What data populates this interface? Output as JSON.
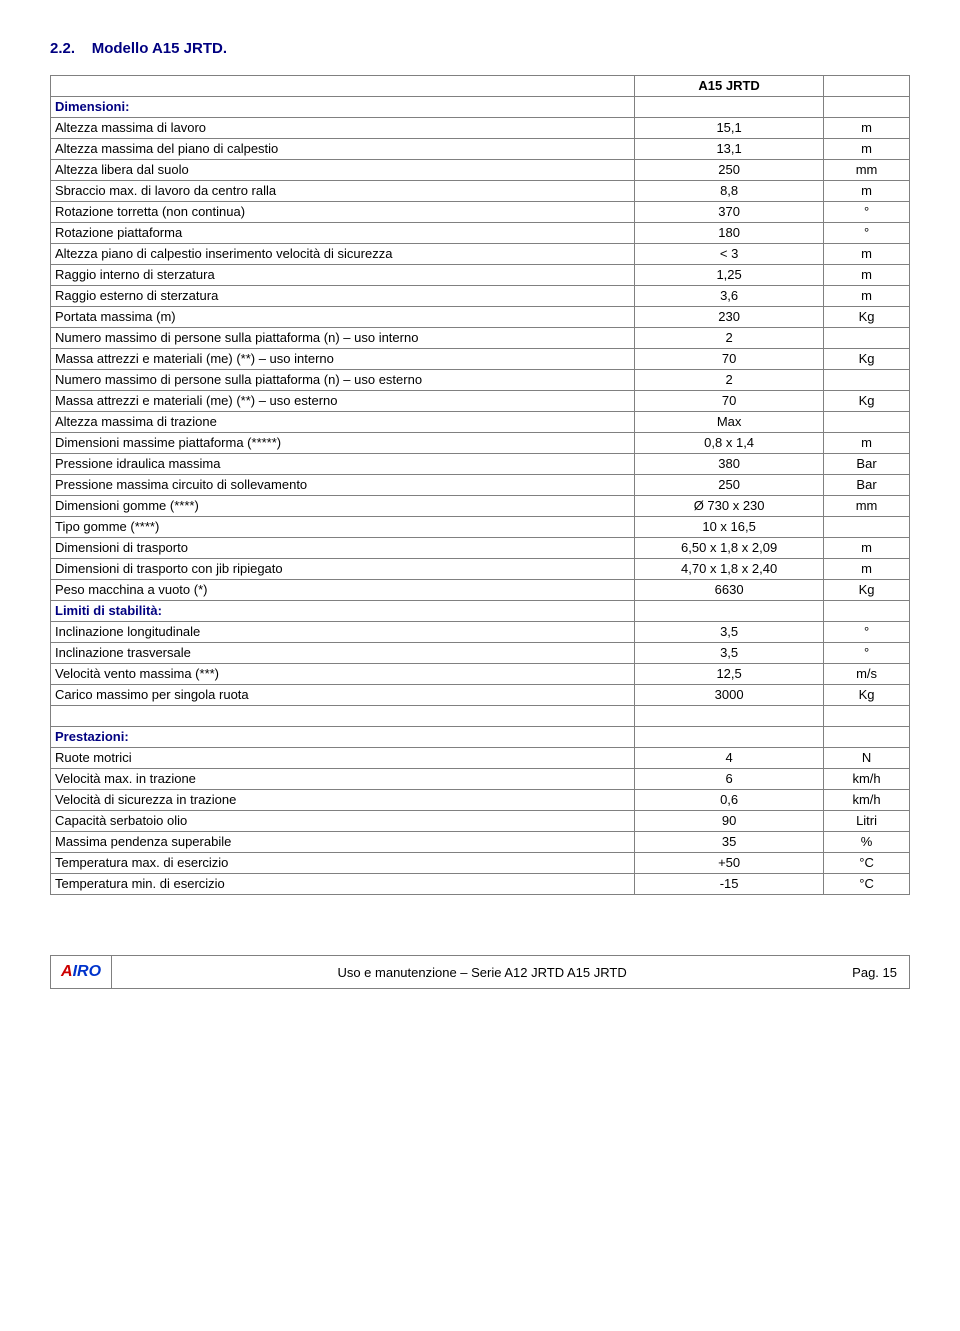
{
  "section": {
    "number": "2.2.",
    "title": "Modello A15 JRTD."
  },
  "model_header": "A15 JRTD",
  "groups": [
    {
      "label": "Dimensioni:",
      "rows": [
        {
          "l": "Altezza massima di lavoro",
          "v": "15,1",
          "u": "m"
        },
        {
          "l": "Altezza massima del piano di calpestio",
          "v": "13,1",
          "u": "m"
        },
        {
          "l": "Altezza libera dal suolo",
          "v": "250",
          "u": "mm"
        },
        {
          "l": "Sbraccio max. di lavoro da centro ralla",
          "v": "8,8",
          "u": "m"
        },
        {
          "l": "Rotazione torretta (non continua)",
          "v": "370",
          "u": "°"
        },
        {
          "l": "Rotazione piattaforma",
          "v": "180",
          "u": "°"
        },
        {
          "l": "Altezza piano di calpestio inserimento velocità di sicurezza",
          "v": "< 3",
          "u": "m"
        },
        {
          "l": "Raggio interno di sterzatura",
          "v": "1,25",
          "u": "m"
        },
        {
          "l": "Raggio esterno di sterzatura",
          "v": "3,6",
          "u": "m"
        },
        {
          "l": "Portata massima (m)",
          "v": "230",
          "u": "Kg"
        },
        {
          "l": "Numero massimo di persone sulla piattaforma (n) – uso interno",
          "v": "2",
          "u": "",
          "indent": 2
        },
        {
          "l": "Massa attrezzi e materiali (me) (**) – uso interno",
          "v": "70",
          "u": "Kg",
          "indent": 2
        },
        {
          "l": "Numero massimo di persone sulla piattaforma (n) – uso esterno",
          "v": "2",
          "u": "",
          "indent": 2
        },
        {
          "l": "Massa attrezzi e materiali (me) (**) – uso esterno",
          "v": "70",
          "u": "Kg",
          "indent": 2
        },
        {
          "l": "Altezza massima di trazione",
          "v": "Max",
          "u": ""
        },
        {
          "l": "Dimensioni massime piattaforma (*****)",
          "v": "0,8 x 1,4",
          "u": "m"
        },
        {
          "l": "Pressione idraulica massima",
          "v": "380",
          "u": "Bar"
        },
        {
          "l": "Pressione massima circuito di sollevamento",
          "v": "250",
          "u": "Bar"
        },
        {
          "l": "Dimensioni gomme (****)",
          "v": "Ø 730 x 230",
          "u": "mm"
        },
        {
          "l": "Tipo gomme (****)",
          "v": "10 x 16,5",
          "u": ""
        },
        {
          "l": "Dimensioni di trasporto",
          "v": "6,50 x 1,8 x 2,09",
          "u": "m"
        },
        {
          "l": "Dimensioni di trasporto con jib ripiegato",
          "v": "4,70 x 1,8 x 2,40",
          "u": "m"
        },
        {
          "l": "Peso macchina a vuoto (*)",
          "v": "6630",
          "u": "Kg"
        }
      ]
    },
    {
      "label": "Limiti di stabilità:",
      "rows": [
        {
          "l": "Inclinazione longitudinale",
          "v": "3,5",
          "u": "°"
        },
        {
          "l": "Inclinazione trasversale",
          "v": "3,5",
          "u": "°"
        },
        {
          "l": "Velocità vento massima (***)",
          "v": "12,5",
          "u": "m/s"
        },
        {
          "l": "Carico massimo per singola ruota",
          "v": "3000",
          "u": "Kg"
        }
      ]
    },
    {
      "gap_before": true,
      "label": "Prestazioni:",
      "rows": [
        {
          "l": "Ruote motrici",
          "v": "4",
          "u": "N"
        },
        {
          "l": "Velocità max. in trazione",
          "v": "6",
          "u": "km/h"
        },
        {
          "l": "Velocità di sicurezza in trazione",
          "v": "0,6",
          "u": "km/h"
        },
        {
          "l": "Capacità serbatoio olio",
          "v": "90",
          "u": "Litri"
        },
        {
          "l": "Massima pendenza superabile",
          "v": "35",
          "u": "%"
        },
        {
          "l": "Temperatura max. di esercizio",
          "v": "+50",
          "u": "°C"
        },
        {
          "l": "Temperatura min. di esercizio",
          "v": "-15",
          "u": "°C"
        }
      ]
    }
  ],
  "footer": {
    "logo_a": "A",
    "logo_iro": "IRO",
    "center": "Uso e manutenzione – Serie A12 JRTD  A15 JRTD",
    "page": "Pag. 15"
  }
}
